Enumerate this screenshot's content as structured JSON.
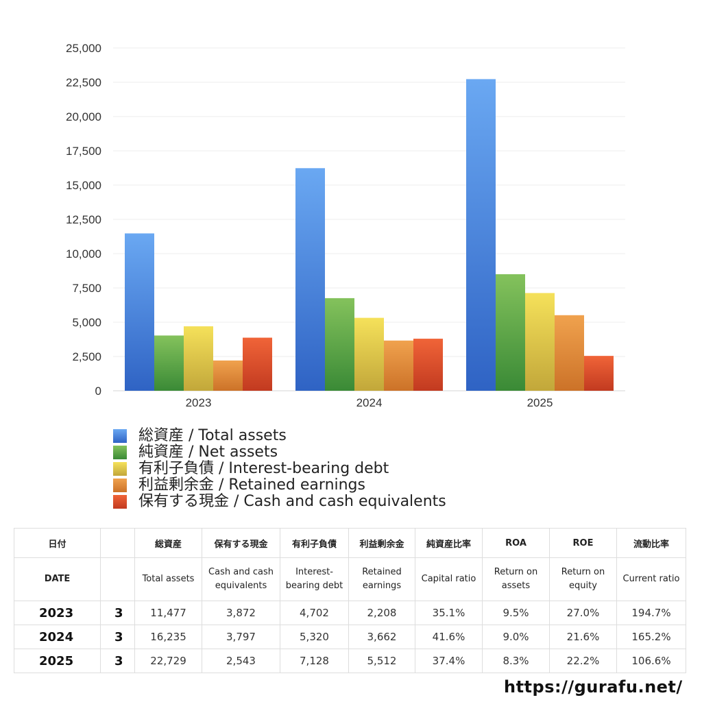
{
  "chart_data": {
    "type": "bar",
    "categories": [
      "2023",
      "2024",
      "2025"
    ],
    "series": [
      {
        "name": "総資産 / Total assets",
        "values": [
          11477,
          16235,
          22729
        ],
        "color_top": "#6aa8f2",
        "color_bottom": "#2f63c4"
      },
      {
        "name": "純資産 / Net assets",
        "values": [
          4030,
          6755,
          8500
        ],
        "color_top": "#84c25c",
        "color_bottom": "#3a8a36"
      },
      {
        "name": "有利子負債 / Interest-bearing debt",
        "values": [
          4702,
          5320,
          7128
        ],
        "color_top": "#f5e15a",
        "color_bottom": "#c2a73a"
      },
      {
        "name": "利益剰余金 / Retained earnings",
        "values": [
          2208,
          3662,
          5512
        ],
        "color_top": "#f0a24e",
        "color_bottom": "#cc7228"
      },
      {
        "name": "保有する現金 /  Cash and cash equivalents",
        "values": [
          3872,
          3797,
          2543
        ],
        "color_top": "#f06438",
        "color_bottom": "#c23a20"
      }
    ],
    "ylim": [
      0,
      25000
    ],
    "yticks": [
      "0",
      "2,500",
      "5,000",
      "7,500",
      "10,000",
      "12,500",
      "15,000",
      "17,500",
      "20,000",
      "22,500",
      "25,000"
    ],
    "grid": true,
    "legend": "bottom"
  },
  "table": {
    "header_ja": [
      "日付",
      "",
      "総資産",
      "保有する現金",
      "有利子負債",
      "利益剰余金",
      "純資産比率",
      "ROA",
      "ROE",
      "流動比率"
    ],
    "header_en": [
      "DATE",
      "",
      "Total assets",
      "Cash and cash equivalents",
      "Interest-bearing debt",
      "Retained earnings",
      "Capital ratio",
      "Return on assets",
      "Return on equity",
      "Current ratio"
    ],
    "rows": [
      {
        "year": "2023",
        "month": "3",
        "total_assets": "11,477",
        "cash": "3,872",
        "debt": "4,702",
        "retained": "2,208",
        "capital_ratio": "35.1%",
        "roa": "9.5%",
        "roe": "27.0%",
        "current_ratio": "194.7%"
      },
      {
        "year": "2024",
        "month": "3",
        "total_assets": "16,235",
        "cash": "3,797",
        "debt": "5,320",
        "retained": "3,662",
        "capital_ratio": "41.6%",
        "roa": "9.0%",
        "roe": "21.6%",
        "current_ratio": "165.2%"
      },
      {
        "year": "2025",
        "month": "3",
        "total_assets": "22,729",
        "cash": "2,543",
        "debt": "7,128",
        "retained": "5,512",
        "capital_ratio": "37.4%",
        "roa": "8.3%",
        "roe": "22.2%",
        "current_ratio": "106.6%"
      }
    ]
  },
  "footer": {
    "url": "https://gurafu.net/"
  }
}
